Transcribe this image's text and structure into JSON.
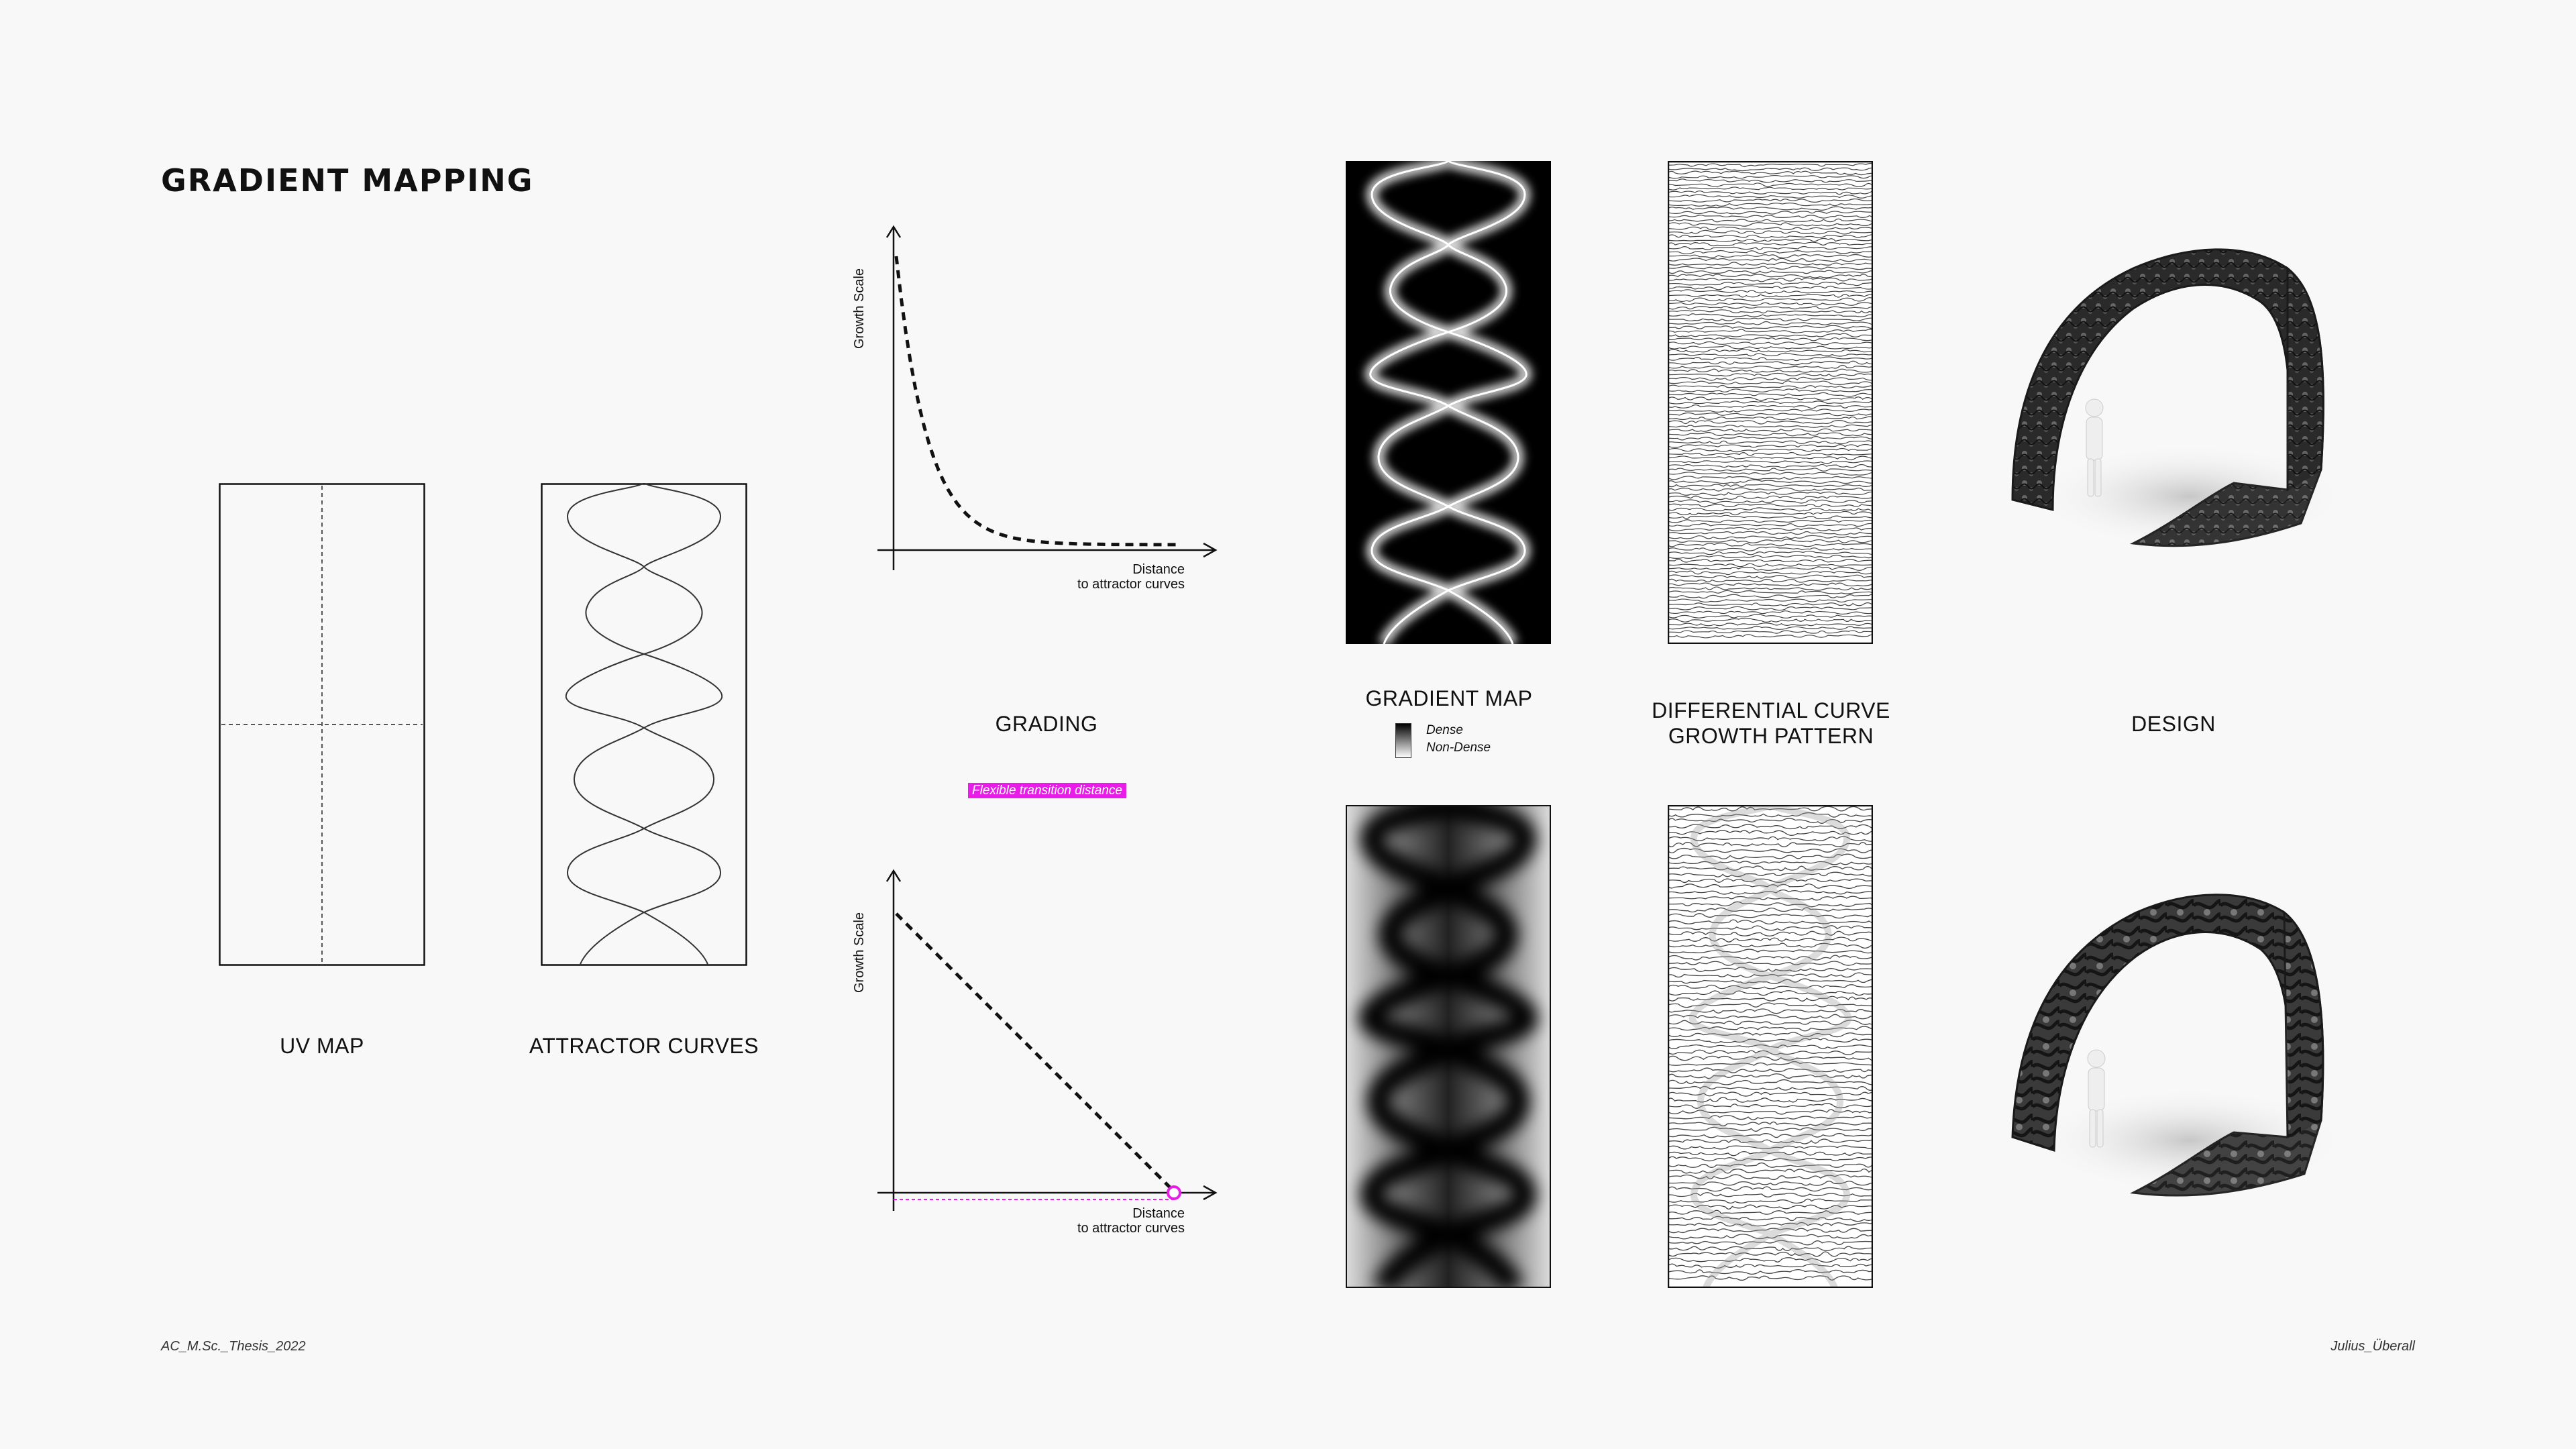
{
  "page": {
    "title": "GRADIENT MAPPING",
    "footer_left": "AC_M.Sc._Thesis_2022",
    "footer_right": "Julius_Überall"
  },
  "labels": {
    "uv_map": "UV MAP",
    "attractor_curves": "ATTRACTOR CURVES",
    "grading": "GRADING",
    "gradient_map": "GRADIENT MAP",
    "differential_line1": "DIFFERENTIAL CURVE",
    "differential_line2": "GROWTH PATTERN",
    "design": "DESIGN"
  },
  "gradient_legend": {
    "dense": "Dense",
    "non_dense": "Non-Dense"
  },
  "grading_charts": [
    {
      "ylabel": "Growth Scale",
      "xlabel_line1": "Distance",
      "xlabel_line2": "to attractor curves",
      "curve": "exponential decay"
    },
    {
      "ylabel": "Growth Scale",
      "xlabel_line1": "Distance",
      "xlabel_line2": "to attractor curves",
      "curve": "linear",
      "annotation": "Flexible transition distance"
    }
  ],
  "colors": {
    "background": "#f8f8f8",
    "ink": "#111111",
    "accent_magenta": "#e81ee8"
  }
}
